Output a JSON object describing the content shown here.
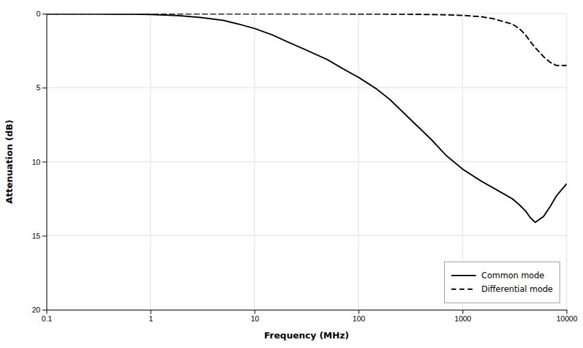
{
  "chart_data": {
    "type": "line",
    "xlabel": "Frequency (MHz)",
    "ylabel": "Attenuation (dB)",
    "log": "x",
    "xlim": [
      0.1,
      10000
    ],
    "xticks": [
      0.1,
      1,
      10,
      100,
      1000,
      10000
    ],
    "ylim": [
      20,
      0
    ],
    "yticks": [
      0,
      5,
      10,
      15,
      20
    ],
    "grid": true,
    "legend": "lower right",
    "series": [
      {
        "name": "Common mode",
        "color": "#000000",
        "line_style": "solid",
        "x": [
          0.1,
          0.2,
          0.3,
          0.5,
          0.7,
          1.0,
          1.5,
          2.0,
          3.0,
          5.0,
          7.0,
          10.0,
          15.0,
          20.0,
          30.0,
          50.0,
          70.0,
          100.0,
          150.0,
          200.0,
          300.0,
          500.0,
          700.0,
          1000.0,
          1500.0,
          2000.0,
          3000.0,
          3500.0,
          4000.0,
          4500.0,
          5000.0,
          6000.0,
          7000.0,
          8000.0,
          10000.0
        ],
        "values": [
          0.02,
          0.02,
          0.02,
          0.03,
          0.04,
          0.06,
          0.1,
          0.15,
          0.25,
          0.45,
          0.7,
          1.0,
          1.45,
          1.85,
          2.4,
          3.1,
          3.7,
          4.3,
          5.1,
          5.8,
          7.0,
          8.5,
          9.6,
          10.5,
          11.3,
          11.8,
          12.5,
          12.9,
          13.3,
          13.8,
          14.1,
          13.7,
          13.0,
          12.3,
          11.5
        ]
      },
      {
        "name": "Differential mode",
        "color": "#000000",
        "line_style": "dashed",
        "x": [
          0.1,
          0.5,
          1.0,
          5.0,
          10.0,
          50.0,
          100.0,
          200.0,
          300.0,
          500.0,
          700.0,
          1000.0,
          1500.0,
          2000.0,
          3000.0,
          3500.0,
          4000.0,
          4500.0,
          5000.0,
          6000.0,
          7000.0,
          8000.0,
          10000.0
        ],
        "values": [
          0.01,
          0.01,
          0.01,
          0.01,
          0.01,
          0.01,
          0.02,
          0.03,
          0.04,
          0.06,
          0.08,
          0.12,
          0.2,
          0.35,
          0.7,
          1.0,
          1.4,
          1.9,
          2.3,
          2.9,
          3.3,
          3.5,
          3.5
        ]
      }
    ]
  }
}
